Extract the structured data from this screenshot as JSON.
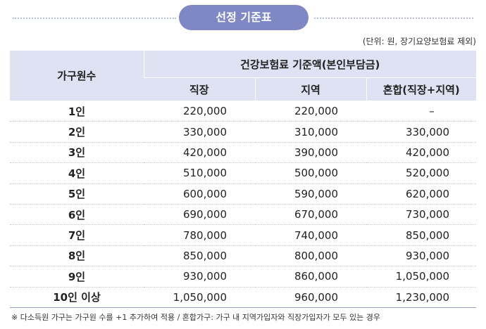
{
  "title": "선정 기준표",
  "unit_note": "(단위: 원, 장기요양보험료 제외)",
  "header": {
    "household": "가구원수",
    "group": "건강보험료 기준액(본인부담금)",
    "col_employee": "직장",
    "col_regional": "지역",
    "col_mixed": "혼합(직장+지역)"
  },
  "rows": [
    {
      "household": "1인",
      "employee": "220,000",
      "regional": "220,000",
      "mixed": "–"
    },
    {
      "household": "2인",
      "employee": "330,000",
      "regional": "310,000",
      "mixed": "330,000"
    },
    {
      "household": "3인",
      "employee": "420,000",
      "regional": "390,000",
      "mixed": "420,000"
    },
    {
      "household": "4인",
      "employee": "510,000",
      "regional": "500,000",
      "mixed": "520,000"
    },
    {
      "household": "5인",
      "employee": "600,000",
      "regional": "590,000",
      "mixed": "620,000"
    },
    {
      "household": "6인",
      "employee": "690,000",
      "regional": "670,000",
      "mixed": "730,000"
    },
    {
      "household": "7인",
      "employee": "780,000",
      "regional": "740,000",
      "mixed": "850,000"
    },
    {
      "household": "8인",
      "employee": "850,000",
      "regional": "800,000",
      "mixed": "930,000"
    },
    {
      "household": "9인",
      "employee": "930,000",
      "regional": "860,000",
      "mixed": "1,050,000"
    },
    {
      "household": "10인 이상",
      "employee": "1,050,000",
      "regional": "960,000",
      "mixed": "1,230,000"
    }
  ],
  "footnote": "※ 다소득원 가구는 가구원 수를 +1 추가하여 적용 / 혼합가구: 가구 내 지역가입자와 직장가입자가 모두 있는 경우",
  "colors": {
    "title_pill": "#7f87c4",
    "header_bg": "#dfe2f3",
    "dotted_line": "#b8c0e0"
  }
}
